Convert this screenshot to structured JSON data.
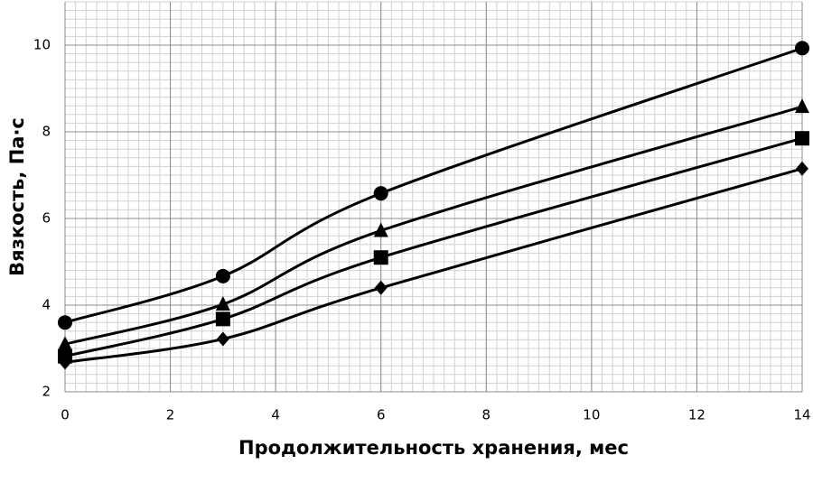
{
  "chart_data": {
    "type": "line",
    "x": [
      0,
      3,
      6,
      14
    ],
    "series": [
      {
        "marker": "circle",
        "color": "#000000",
        "values": [
          3.6,
          4.67,
          6.58,
          9.93
        ]
      },
      {
        "marker": "triangle",
        "color": "#000000",
        "values": [
          3.1,
          4.02,
          5.72,
          8.58
        ]
      },
      {
        "marker": "square",
        "color": "#000000",
        "values": [
          2.82,
          3.68,
          5.1,
          7.85
        ]
      },
      {
        "marker": "diamond",
        "color": "#000000",
        "values": [
          2.68,
          3.22,
          4.4,
          7.15
        ]
      }
    ],
    "xlabel": "Продолжительность хранения, мес",
    "ylabel": "Вязкость, Па·с",
    "xlim": [
      0,
      14
    ],
    "xticks": [
      0,
      2,
      4,
      6,
      8,
      10,
      12,
      14
    ],
    "ylim": [
      2,
      11
    ],
    "yticks": [
      2,
      4,
      6,
      8,
      10
    ],
    "grid": true,
    "minor_grid": true,
    "smooth": true
  }
}
